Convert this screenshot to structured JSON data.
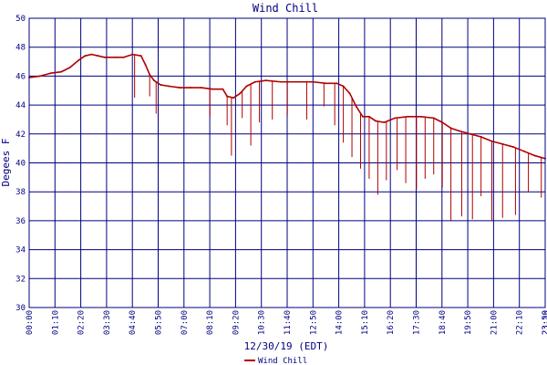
{
  "chart_data": {
    "type": "line",
    "title": "Wind Chill",
    "xlabel": "12/30/19 (EDT)",
    "ylabel": "Degees F",
    "x_ticks": [
      "00:00",
      "01:10",
      "02:20",
      "03:30",
      "04:40",
      "05:50",
      "07:00",
      "08:10",
      "09:20",
      "10:30",
      "11:40",
      "12:50",
      "14:00",
      "15:10",
      "16:20",
      "17:30",
      "18:40",
      "19:50",
      "21:00",
      "22:10",
      "23:20",
      "23:59"
    ],
    "y_ticks": [
      "30",
      "32",
      "34",
      "36",
      "38",
      "40",
      "42",
      "44",
      "46",
      "48",
      "50"
    ],
    "ylim": [
      30,
      50
    ],
    "xlim_hours": [
      0,
      23.98
    ],
    "grid": true,
    "legend_position": "bottom-center",
    "colors": {
      "series": "#b00000",
      "grid": "#000080",
      "text": "#000080",
      "background": "#ffffff"
    },
    "series": [
      {
        "name": "Wind Chill",
        "x_hours": [
          0.0,
          0.5,
          1.0,
          1.5,
          1.9,
          2.3,
          2.6,
          2.9,
          3.2,
          3.5,
          4.0,
          4.4,
          4.8,
          5.2,
          5.4,
          5.6,
          5.8,
          6.1,
          6.5,
          7.0,
          7.5,
          8.0,
          8.5,
          9.0,
          9.2,
          9.5,
          9.8,
          10.1,
          10.5,
          11.0,
          11.7,
          12.5,
          13.2,
          13.8,
          14.3,
          14.6,
          14.9,
          15.2,
          15.5,
          15.8,
          16.1,
          16.5,
          17.0,
          17.6,
          18.2,
          18.8,
          19.2,
          19.6,
          20.0,
          20.5,
          21.0,
          21.5,
          22.0,
          22.5,
          23.0,
          23.5,
          23.98
        ],
        "y": [
          45.9,
          46.0,
          46.2,
          46.3,
          46.6,
          47.1,
          47.4,
          47.5,
          47.4,
          47.3,
          47.3,
          47.3,
          47.5,
          47.4,
          46.8,
          46.1,
          45.7,
          45.4,
          45.3,
          45.2,
          45.2,
          45.2,
          45.1,
          45.1,
          44.6,
          44.5,
          44.8,
          45.3,
          45.6,
          45.7,
          45.6,
          45.6,
          45.6,
          45.5,
          45.5,
          45.3,
          44.8,
          43.9,
          43.2,
          43.2,
          42.9,
          42.8,
          43.1,
          43.2,
          43.2,
          43.1,
          42.8,
          42.4,
          42.2,
          42.0,
          41.8,
          41.5,
          41.3,
          41.1,
          40.8,
          40.5,
          40.3
        ],
        "dips": [
          {
            "x": 4.9,
            "y": 44.5
          },
          {
            "x": 5.6,
            "y": 44.6
          },
          {
            "x": 5.9,
            "y": 43.4
          },
          {
            "x": 8.4,
            "y": 43.2
          },
          {
            "x": 9.2,
            "y": 42.6
          },
          {
            "x": 9.4,
            "y": 40.5
          },
          {
            "x": 9.9,
            "y": 43.1
          },
          {
            "x": 10.3,
            "y": 41.2
          },
          {
            "x": 10.7,
            "y": 42.8
          },
          {
            "x": 11.3,
            "y": 43.0
          },
          {
            "x": 12.0,
            "y": 43.3
          },
          {
            "x": 12.9,
            "y": 43.0
          },
          {
            "x": 13.7,
            "y": 43.9
          },
          {
            "x": 14.2,
            "y": 42.6
          },
          {
            "x": 14.6,
            "y": 41.4
          },
          {
            "x": 15.0,
            "y": 40.4
          },
          {
            "x": 15.4,
            "y": 39.6
          },
          {
            "x": 15.8,
            "y": 38.9
          },
          {
            "x": 16.2,
            "y": 37.8
          },
          {
            "x": 16.6,
            "y": 38.8
          },
          {
            "x": 17.1,
            "y": 39.5
          },
          {
            "x": 17.5,
            "y": 38.6
          },
          {
            "x": 18.0,
            "y": 38.2
          },
          {
            "x": 18.4,
            "y": 38.9
          },
          {
            "x": 18.8,
            "y": 39.2
          },
          {
            "x": 19.2,
            "y": 38.3
          },
          {
            "x": 19.6,
            "y": 36.0
          },
          {
            "x": 20.1,
            "y": 36.3
          },
          {
            "x": 20.6,
            "y": 36.1
          },
          {
            "x": 21.0,
            "y": 37.7
          },
          {
            "x": 21.5,
            "y": 36.0
          },
          {
            "x": 22.0,
            "y": 36.2
          },
          {
            "x": 22.6,
            "y": 36.4
          },
          {
            "x": 23.2,
            "y": 38.0
          },
          {
            "x": 23.8,
            "y": 37.6
          }
        ]
      }
    ]
  }
}
